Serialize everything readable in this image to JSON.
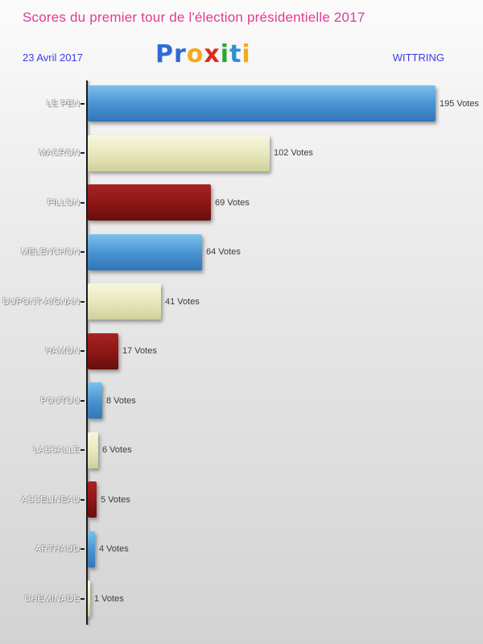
{
  "header": {
    "title": "Scores du premier tour de l'élection présidentielle 2017",
    "date": "23 Avril 2017",
    "location": "WITTRING",
    "logo": {
      "letters": [
        {
          "ch": "P",
          "color": "#2f6bd7"
        },
        {
          "ch": "r",
          "color": "#2f6bd7"
        },
        {
          "ch": "o",
          "color": "#f6a91e"
        },
        {
          "ch": "x",
          "color": "#d92e1c"
        },
        {
          "ch": "i",
          "color": "#2fa33a"
        },
        {
          "ch": "t",
          "color": "#2f8fd7"
        },
        {
          "ch": "i",
          "color": "#f6a91e"
        }
      ]
    }
  },
  "chart_data": {
    "type": "bar",
    "orientation": "horizontal",
    "title": "Scores du premier tour de l'élection présidentielle 2017",
    "categories": [
      "LE PEN",
      "MACRON",
      "FILLON",
      "MELENCHON",
      "DUPONT-AIGNAN",
      "HAMON",
      "POUTOU",
      "LASSALLE",
      "ASSELINEAU",
      "ARTHAUD",
      "CHEMINADE"
    ],
    "values": [
      195,
      102,
      69,
      64,
      41,
      17,
      8,
      6,
      5,
      4,
      1
    ],
    "value_suffix": " Votes",
    "xlim": [
      0,
      195
    ],
    "legend": false,
    "grid": false,
    "bar_color_cycle": [
      "blue",
      "cream",
      "darkred"
    ],
    "bar_colors": {
      "blue": "#4a94d2",
      "cream": "#e8e8be",
      "darkred": "#8a1616"
    }
  },
  "colors": {
    "title_text": "#e23b97",
    "meta_text": "#3d3de0",
    "value_text": "#3a3a3a",
    "axis": "#1a1a1a"
  }
}
